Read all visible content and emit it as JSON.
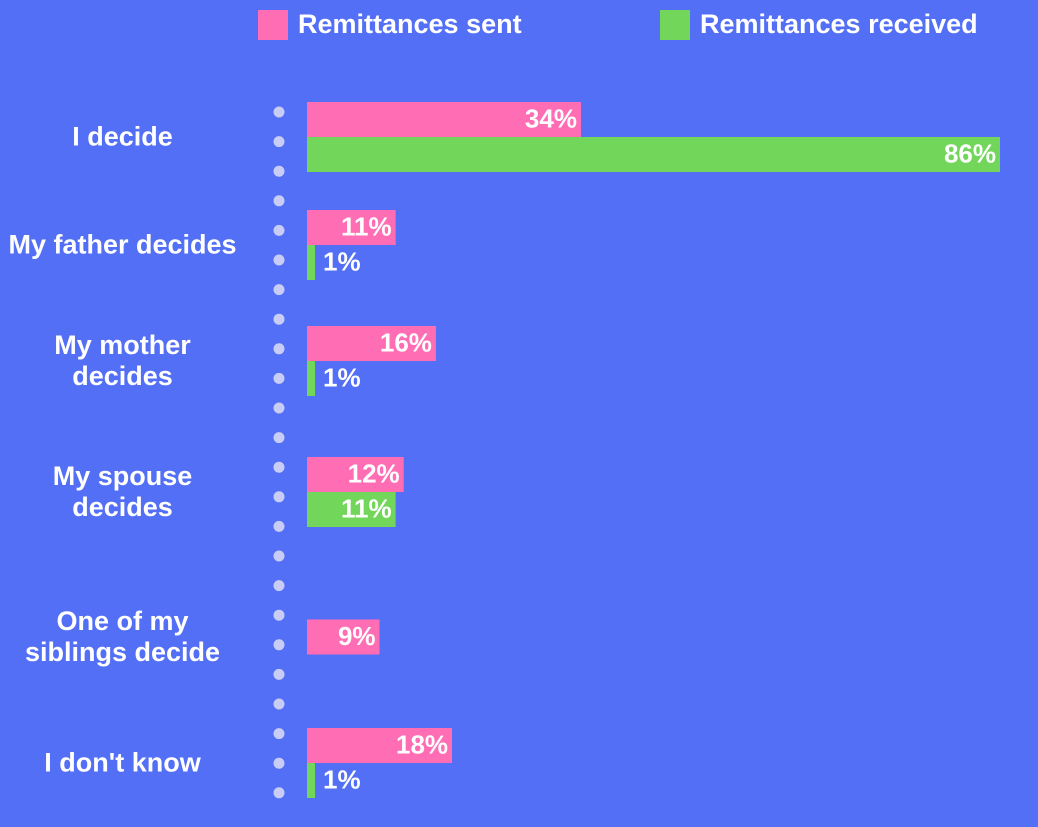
{
  "chart_data": {
    "type": "bar",
    "orientation": "horizontal",
    "categories": [
      "I decide",
      "My father decides",
      "My mother decides",
      "My spouse decides",
      "One of my siblings decide",
      "I don't know"
    ],
    "series": [
      {
        "name": "Remittances sent",
        "color": "#ff6eb4",
        "values": [
          34,
          11,
          16,
          12,
          9,
          18
        ],
        "value_labels": [
          "34%",
          "11%",
          "16%",
          "12%",
          "9%",
          "18%"
        ]
      },
      {
        "name": "Remittances received",
        "color": "#72d65a",
        "values": [
          86,
          1,
          1,
          11,
          null,
          1
        ],
        "value_labels": [
          "86%",
          "1%",
          "1%",
          "11%",
          null,
          "1%"
        ]
      }
    ],
    "xlim": [
      0,
      86
    ],
    "legend": "top"
  }
}
